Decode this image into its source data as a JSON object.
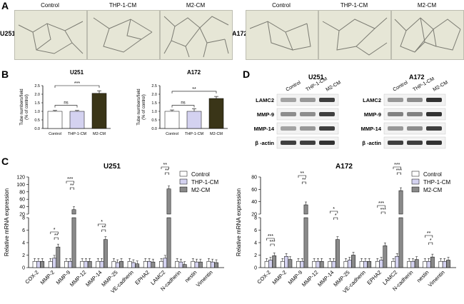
{
  "panels": {
    "a": "A",
    "b": "B",
    "c": "C",
    "d": "D"
  },
  "panel_a": {
    "lines": [
      "U251",
      "A172"
    ],
    "conditions": [
      "Control",
      "THP-1-CM",
      "M2-CM"
    ]
  },
  "panel_d": {
    "u251": {
      "title": "U251",
      "conditions": [
        "Control",
        "THP-1-CM",
        "M2-CM"
      ],
      "proteins": [
        "LAMC2",
        "MMP-9",
        "MMP-14",
        "β -actin"
      ]
    },
    "a172": {
      "title": "A172",
      "conditions": [
        "Control",
        "THP-1-CM",
        "M2-CM"
      ],
      "proteins": [
        "LAMC2",
        "MMP-9",
        "MMP-14",
        "β -actin"
      ]
    }
  },
  "colors": {
    "control": "#ffffff",
    "thp1": "#d4d2f0",
    "m2": "#3a3518",
    "m2_mrna": "#8a8a8a"
  },
  "chart_data": [
    {
      "type": "bar",
      "title": "U251",
      "ylabel": "Tube numbers/field (% of control)",
      "categories": [
        "Control",
        "THP-1-CM",
        "M2-CM"
      ],
      "values": [
        1.0,
        1.0,
        2.05
      ],
      "errors": [
        0.05,
        0.05,
        0.15
      ],
      "ylim": [
        0,
        2.5
      ],
      "yticks": [
        "0.0",
        "0.5",
        "1.0",
        "1.5",
        "2.0",
        "2.5"
      ],
      "significance": [
        "ns",
        "***"
      ]
    },
    {
      "type": "bar",
      "title": "A172",
      "ylabel": "Tube numbers/field (% of control)",
      "categories": [
        "Control",
        "THP-1-CM",
        "M2-CM"
      ],
      "values": [
        1.0,
        1.0,
        1.75
      ],
      "errors": [
        0.08,
        0.15,
        0.12
      ],
      "ylim": [
        0,
        2.5
      ],
      "yticks": [
        "0.0",
        "0.5",
        "1.0",
        "1.5",
        "2.0",
        "2.5"
      ],
      "significance": [
        "ns",
        "**"
      ]
    },
    {
      "type": "bar",
      "title": "U251",
      "ylabel": "Relative mRNA expression",
      "legend": [
        "Control",
        "THP-1-CM",
        "M2-CM"
      ],
      "categories": [
        "COX-2",
        "MMP-2",
        "MMP-9",
        "MMP-12",
        "MMP-14",
        "MMP-25",
        "VE-cadherin",
        "EPHA2",
        "LAMC2",
        "N-cadherin",
        "nestin",
        "Vimentin"
      ],
      "series": [
        {
          "name": "Control",
          "values": [
            1,
            1,
            1,
            1,
            1,
            1,
            1,
            1,
            1,
            1,
            1,
            1
          ]
        },
        {
          "name": "THP-1-CM",
          "values": [
            1,
            1.5,
            1,
            1,
            1,
            0.8,
            0.8,
            1,
            1.5,
            0.9,
            0.9,
            0.9
          ]
        },
        {
          "name": "M2-CM",
          "values": [
            1,
            3.3,
            32,
            1,
            4.5,
            1,
            0.6,
            0.9,
            88,
            0.5,
            0.9,
            0.8
          ]
        }
      ],
      "yticks": [
        "0",
        "2",
        "4",
        "6",
        "8",
        "20",
        "40",
        "60",
        "80",
        "100",
        "120"
      ],
      "significance_labels": [
        "*",
        "**",
        "***",
        "**",
        "*",
        "**",
        "**",
        "**"
      ]
    },
    {
      "type": "bar",
      "title": "A172",
      "ylabel": "Relative mRNA expression",
      "legend": [
        "Control",
        "THP-1-CM",
        "M2-CM"
      ],
      "categories": [
        "COX-2",
        "MMP-2",
        "MMP-9",
        "MMP-12",
        "MMP-14",
        "MMP-25",
        "VE-cadherin",
        "EPHA2",
        "LAMC2",
        "N-cadherin",
        "nestin",
        "Vimentin"
      ],
      "series": [
        {
          "name": "Control",
          "values": [
            1,
            1,
            1,
            1,
            1,
            1,
            1,
            1,
            1,
            1,
            1,
            1
          ]
        },
        {
          "name": "THP-1-CM",
          "values": [
            1.2,
            1.8,
            1,
            1,
            1,
            1.2,
            1,
            1.2,
            1.8,
            1,
            1,
            1
          ]
        },
        {
          "name": "M2-CM",
          "values": [
            1.9,
            1.3,
            35,
            1,
            4.5,
            2,
            1,
            3.5,
            58,
            1.3,
            1.7,
            1.2
          ]
        }
      ],
      "yticks": [
        "0",
        "2",
        "4",
        "6",
        "8",
        "20",
        "40",
        "60",
        "80"
      ],
      "significance_labels": [
        "***",
        "***",
        "**",
        "**",
        "*",
        "*",
        "***",
        "***",
        "***",
        "***",
        "**",
        "*"
      ]
    }
  ]
}
